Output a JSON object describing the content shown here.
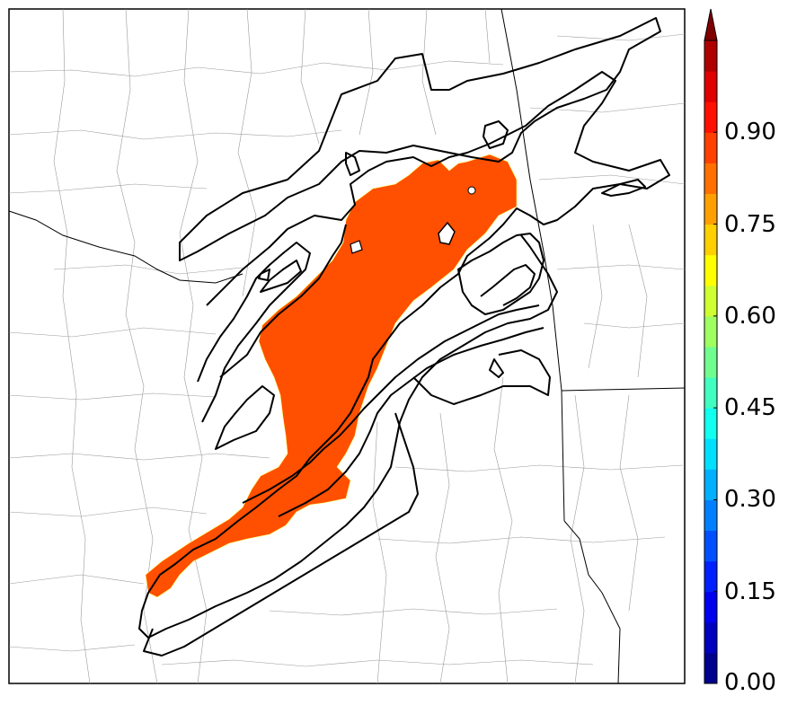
{
  "colorbar": {
    "labels": [
      {
        "text": "0.90",
        "value": 0.9
      },
      {
        "text": "0.75",
        "value": 0.75
      },
      {
        "text": "0.60",
        "value": 0.6
      },
      {
        "text": "0.45",
        "value": 0.45
      },
      {
        "text": "0.30",
        "value": 0.3
      },
      {
        "text": "0.15",
        "value": 0.15
      },
      {
        "text": "0.00",
        "value": 0.0
      }
    ],
    "range": [
      0.0,
      1.05
    ],
    "extend": "max",
    "colors": [
      "#00008f",
      "#0000bf",
      "#0000ef",
      "#0020ff",
      "#0050ff",
      "#0080ff",
      "#00b0ff",
      "#00dfff",
      "#10ffef",
      "#40ffbf",
      "#70ff8f",
      "#9fff60",
      "#cfff30",
      "#ffff00",
      "#ffd000",
      "#ffa000",
      "#ff7000",
      "#ff4000",
      "#ff1000",
      "#df0000",
      "#af0000",
      "#800000"
    ]
  },
  "map": {
    "fill_color": "#ff4f00",
    "contour_color": "#000000",
    "land_color": "#ffffff",
    "county_line_color": "#999999"
  }
}
